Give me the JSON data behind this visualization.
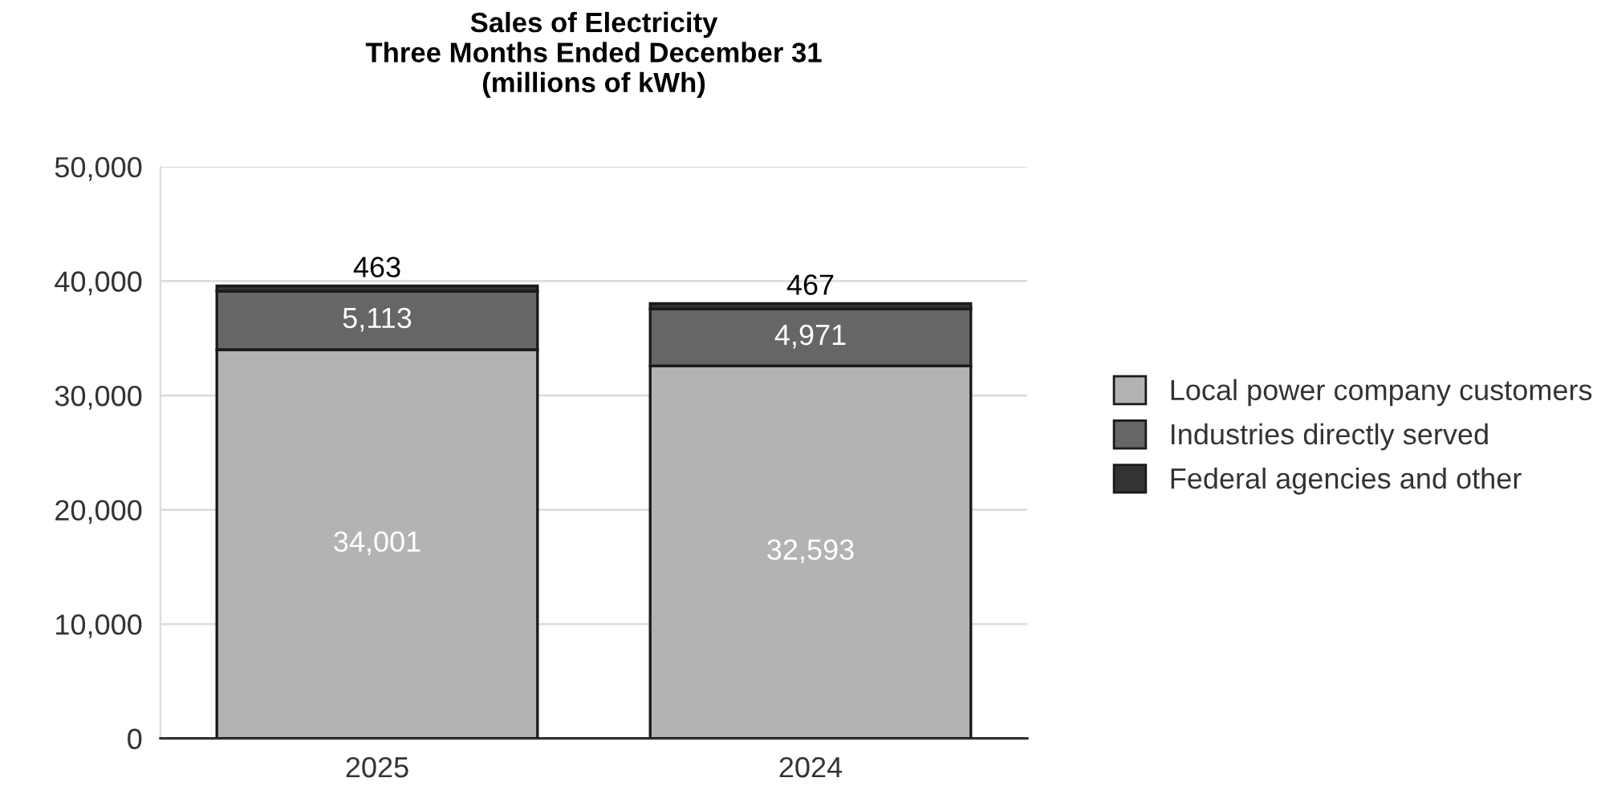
{
  "chart_data": {
    "type": "bar",
    "title": "Sales of Electricity\nThree Months Ended December 31\n(millions of kWh)",
    "categories": [
      "2025",
      "2024"
    ],
    "stacked": true,
    "series": [
      {
        "name": "Local power company customers",
        "color": "#b3b3b3",
        "values": [
          34001,
          32593
        ],
        "value_labels": [
          "34,001",
          "32,593"
        ]
      },
      {
        "name": "Industries directly served",
        "color": "#666666",
        "values": [
          5113,
          4971
        ],
        "value_labels": [
          "5,113",
          "4,971"
        ]
      },
      {
        "name": "Federal agencies and other",
        "color": "#333333",
        "values": [
          463,
          467
        ],
        "value_labels": [
          "463",
          "467"
        ]
      }
    ],
    "ylim": [
      0,
      50000
    ],
    "yticks": [
      {
        "value": 0,
        "label": "0"
      },
      {
        "value": 10000,
        "label": "10,000"
      },
      {
        "value": 20000,
        "label": "20,000"
      },
      {
        "value": 30000,
        "label": "30,000"
      },
      {
        "value": 40000,
        "label": "40,000"
      },
      {
        "value": 50000,
        "label": "50,000"
      }
    ],
    "grid": "y",
    "legend": "right"
  }
}
